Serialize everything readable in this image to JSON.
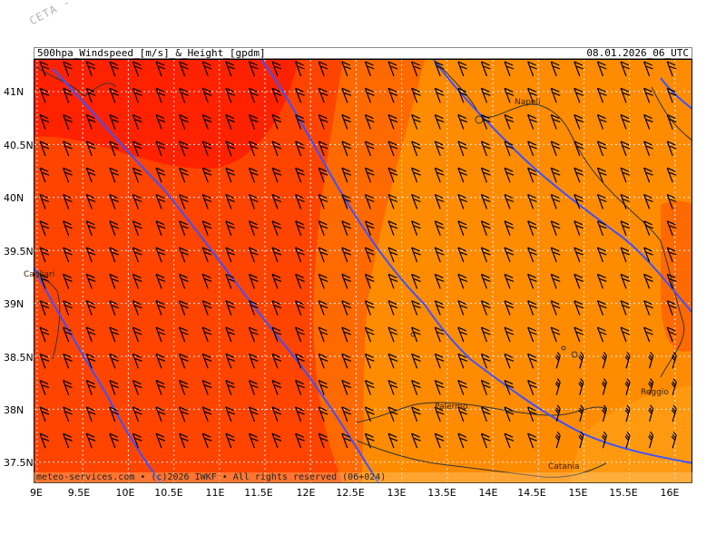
{
  "watermark": "CETA - Inst. ...",
  "header": {
    "title": "500hpa_Windspeed_[m/s]_&_Height_[gpdm]",
    "datetime": "08.01.2026_06_UTC"
  },
  "footer": "meteo-services.com • (c)2026 IWKF • All rights reserved (06+024)",
  "axes": {
    "lat_labels": [
      "41N",
      "40.5N",
      "40N",
      "39.5N",
      "39N",
      "38.5N",
      "38N",
      "37.5N"
    ],
    "lon_labels": [
      "9E",
      "9.5E",
      "10E",
      "10.5E",
      "11E",
      "11.5E",
      "12E",
      "12.5E",
      "13E",
      "13.5E",
      "14E",
      "14.5E",
      "15E",
      "15.5E",
      "16E"
    ]
  },
  "cities": [
    "Napoli",
    "Cagliari",
    "Palermo",
    "Catania",
    "Reggio"
  ],
  "colors": {
    "wind_low": "#ff8c00",
    "wind_mid": "#ff6a00",
    "wind_high": "#ff4400",
    "wind_max": "#ff2200",
    "height_contour": "#3f51ff",
    "coastline": "#333333",
    "grid": "#e6e6e6"
  },
  "icons": [
    "wind-barb-icon"
  ]
}
